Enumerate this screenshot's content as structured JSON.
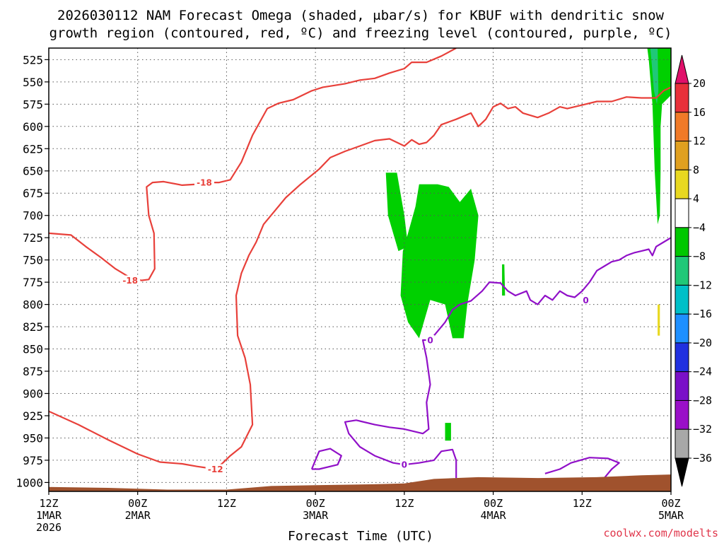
{
  "chart_data": {
    "type": "heatmap",
    "title_lines": [
      "2026030112 NAM Forecast Omega (shaded, μbar/s) for KBUF with dendritic snow",
      "growth region (contoured, red, ºC) and freezing level (contoured, purple, ºC)"
    ],
    "xlabel": "Forecast Time (UTC)",
    "credit": "coolwx.com/modelts",
    "x_range_hours": [
      0,
      84
    ],
    "y_range_hpa": [
      512,
      1010
    ],
    "y_ticks": [
      "525",
      "550",
      "575",
      "600",
      "625",
      "650",
      "675",
      "700",
      "725",
      "750",
      "775",
      "800",
      "825",
      "850",
      "875",
      "900",
      "925",
      "950",
      "975",
      "1000"
    ],
    "x_ticks": [
      {
        "h": 0,
        "lines": [
          "12Z",
          "1MAR",
          "2026"
        ]
      },
      {
        "h": 12,
        "lines": [
          "00Z",
          "2MAR"
        ]
      },
      {
        "h": 24,
        "lines": [
          "12Z"
        ]
      },
      {
        "h": 36,
        "lines": [
          "00Z",
          "3MAR"
        ]
      },
      {
        "h": 48,
        "lines": [
          "12Z"
        ]
      },
      {
        "h": 60,
        "lines": [
          "00Z",
          "4MAR"
        ]
      },
      {
        "h": 72,
        "lines": [
          "12Z"
        ]
      },
      {
        "h": 84,
        "lines": [
          "00Z",
          "5MAR"
        ]
      }
    ],
    "colorbar": {
      "labels": [
        "20",
        "16",
        "12",
        "8",
        "4",
        "−4",
        "−8",
        "−12",
        "−16",
        "−20",
        "−24",
        "−28",
        "−32",
        "−36"
      ],
      "colors": [
        "#e8303a",
        "#f07a28",
        "#e0a020",
        "#e8d820",
        "#ffffff",
        "#00c800",
        "#20c878",
        "#00c0c8",
        "#1e90ff",
        "#2030e0",
        "#7a10c8",
        "#9a10c8",
        "#a8a8a8"
      ],
      "top_arrow_color": "#e0106a",
      "bottom_arrow_color": "#000000"
    },
    "terrain_color": "#a0522d",
    "omega_regions": [
      {
        "value": -6,
        "color": "#00d000",
        "points": [
          [
            45.5,
            652
          ],
          [
            47,
            652
          ],
          [
            48,
            700
          ],
          [
            48.5,
            735
          ],
          [
            47.2,
            740
          ],
          [
            46.5,
            720
          ],
          [
            45.8,
            700
          ]
        ]
      },
      {
        "value": -6,
        "color": "#00d000",
        "points": [
          [
            50,
            665
          ],
          [
            52.5,
            665
          ],
          [
            54,
            668
          ],
          [
            55.5,
            685
          ],
          [
            57,
            670
          ],
          [
            58,
            700
          ],
          [
            57.5,
            750
          ],
          [
            56.5,
            800
          ],
          [
            56,
            838
          ],
          [
            54.5,
            838
          ],
          [
            53.5,
            800
          ],
          [
            51.5,
            795
          ],
          [
            50,
            838
          ],
          [
            48.5,
            820
          ],
          [
            47.5,
            790
          ],
          [
            47.8,
            740
          ],
          [
            48.5,
            720
          ],
          [
            49.5,
            690
          ]
        ]
      },
      {
        "value": -6,
        "color": "#00d000",
        "points": [
          [
            61.2,
            755
          ],
          [
            61.5,
            755
          ],
          [
            61.6,
            790
          ],
          [
            61.2,
            790
          ]
        ]
      },
      {
        "value": -6,
        "color": "#00d000",
        "points": [
          [
            53.5,
            933
          ],
          [
            54.3,
            933
          ],
          [
            54.3,
            953
          ],
          [
            53.5,
            953
          ]
        ]
      },
      {
        "value": -6,
        "color": "#00d000",
        "points": [
          [
            82.5,
            512
          ],
          [
            84,
            512
          ],
          [
            84,
            565
          ],
          [
            82.8,
            575
          ],
          [
            82.6,
            600
          ],
          [
            82.6,
            650
          ],
          [
            82.5,
            700
          ],
          [
            82.2,
            710
          ],
          [
            81.8,
            650
          ],
          [
            81.5,
            575
          ],
          [
            81,
            525
          ],
          [
            80.8,
            512
          ]
        ]
      },
      {
        "value": -10,
        "color": "#20c878",
        "points": [
          [
            81.2,
            512
          ],
          [
            82.2,
            512
          ],
          [
            82.3,
            560
          ],
          [
            82.1,
            575
          ],
          [
            81.7,
            560
          ],
          [
            81.4,
            530
          ]
        ]
      },
      {
        "value": 6,
        "color": "#e8d820",
        "points": [
          [
            82.2,
            800
          ],
          [
            82.5,
            800
          ],
          [
            82.5,
            835
          ],
          [
            82.2,
            835
          ]
        ]
      }
    ],
    "red_contours": [
      {
        "label": "-18",
        "label_at": [
          21,
          663
        ],
        "points": [
          [
            0,
            720
          ],
          [
            3,
            722
          ],
          [
            5,
            735
          ],
          [
            7,
            747
          ],
          [
            9,
            760
          ],
          [
            11,
            770
          ],
          [
            12.5,
            773
          ],
          [
            13.5,
            772
          ],
          [
            14.3,
            760
          ],
          [
            14.2,
            720
          ],
          [
            13.5,
            700
          ],
          [
            13.2,
            668
          ],
          [
            14,
            663
          ],
          [
            15.5,
            662
          ],
          [
            18,
            666
          ],
          [
            20,
            665
          ],
          [
            21,
            663
          ],
          [
            23,
            663
          ],
          [
            24.5,
            660
          ],
          [
            26,
            640
          ],
          [
            27.5,
            610
          ],
          [
            29.5,
            580
          ],
          [
            31,
            574
          ],
          [
            33,
            570
          ],
          [
            35.5,
            560
          ],
          [
            37,
            556
          ],
          [
            40,
            552
          ],
          [
            42,
            548
          ],
          [
            44,
            546
          ],
          [
            46,
            540
          ],
          [
            48,
            535
          ],
          [
            49,
            528
          ],
          [
            51,
            528
          ],
          [
            53,
            521
          ],
          [
            55,
            512
          ]
        ]
      },
      {
        "label": "-18",
        "label_at": [
          11,
          773
        ],
        "points": []
      },
      {
        "label": "-12",
        "label_at": [
          22.5,
          985
        ],
        "points": [
          [
            0,
            920
          ],
          [
            4,
            935
          ],
          [
            8,
            952
          ],
          [
            12,
            968
          ],
          [
            15,
            977
          ],
          [
            18,
            979
          ],
          [
            20,
            982
          ],
          [
            22.5,
            985
          ],
          [
            23.5,
            978
          ],
          [
            24.5,
            970
          ],
          [
            26,
            960
          ],
          [
            27.5,
            935
          ],
          [
            27.2,
            890
          ],
          [
            26.5,
            860
          ],
          [
            25.5,
            835
          ],
          [
            25.3,
            790
          ],
          [
            26,
            765
          ],
          [
            27,
            745
          ],
          [
            28,
            730
          ],
          [
            29,
            710
          ],
          [
            30.5,
            695
          ],
          [
            32,
            680
          ],
          [
            34,
            665
          ],
          [
            36.5,
            648
          ],
          [
            38,
            635
          ],
          [
            40,
            628
          ],
          [
            42,
            622
          ],
          [
            44,
            616
          ],
          [
            46,
            614
          ],
          [
            48,
            622
          ],
          [
            49,
            615
          ],
          [
            50,
            620
          ],
          [
            51,
            618
          ],
          [
            52,
            610
          ],
          [
            53,
            598
          ],
          [
            55,
            592
          ],
          [
            57,
            585
          ],
          [
            58,
            600
          ],
          [
            59,
            592
          ],
          [
            60,
            578
          ],
          [
            61,
            574
          ],
          [
            62,
            580
          ],
          [
            63,
            578
          ],
          [
            64,
            585
          ],
          [
            66,
            590
          ],
          [
            67.5,
            585
          ],
          [
            69,
            578
          ],
          [
            70,
            580
          ],
          [
            72,
            576
          ],
          [
            74,
            572
          ],
          [
            76,
            572
          ],
          [
            78,
            567
          ],
          [
            80,
            568
          ],
          [
            82,
            568
          ],
          [
            83,
            560
          ],
          [
            84,
            556
          ]
        ]
      }
    ],
    "purple_contours": [
      {
        "label": "0",
        "label_at": [
          51.5,
          840
        ],
        "points": [
          [
            51.5,
            840
          ],
          [
            52.5,
            830
          ],
          [
            53.5,
            820
          ],
          [
            54.5,
            806
          ],
          [
            55.5,
            800
          ],
          [
            57,
            796
          ],
          [
            58.5,
            785
          ],
          [
            59.5,
            775
          ],
          [
            61,
            776
          ],
          [
            62,
            785
          ],
          [
            63,
            790
          ],
          [
            64.5,
            785
          ],
          [
            65,
            795
          ],
          [
            66,
            800
          ],
          [
            67,
            790
          ],
          [
            68,
            795
          ],
          [
            69,
            785
          ],
          [
            70,
            790
          ],
          [
            71,
            792
          ],
          [
            72,
            785
          ],
          [
            73,
            775
          ],
          [
            74,
            762
          ],
          [
            75,
            757
          ],
          [
            76,
            752
          ],
          [
            77,
            750
          ],
          [
            78,
            745
          ],
          [
            79,
            742
          ],
          [
            80,
            740
          ],
          [
            81,
            738
          ],
          [
            81.5,
            745
          ],
          [
            82,
            735
          ],
          [
            83,
            730
          ],
          [
            84,
            725
          ]
        ]
      },
      {
        "label": "0",
        "label_at": [
          72.5,
          795
        ],
        "points": []
      },
      {
        "label": "0",
        "label_at": [
          48,
          980
        ],
        "points": [
          [
            51.5,
            840
          ],
          [
            50.5,
            840
          ],
          [
            51,
            860
          ],
          [
            51.5,
            890
          ],
          [
            51,
            910
          ],
          [
            51.3,
            940
          ],
          [
            50.5,
            945
          ],
          [
            48,
            940
          ],
          [
            46,
            938
          ],
          [
            44,
            935
          ],
          [
            41.5,
            930
          ],
          [
            40,
            932
          ],
          [
            40.5,
            945
          ],
          [
            42,
            960
          ],
          [
            44,
            970
          ],
          [
            46.5,
            978
          ],
          [
            48,
            980
          ],
          [
            50,
            978
          ],
          [
            52,
            975
          ],
          [
            53,
            965
          ],
          [
            54.5,
            963
          ],
          [
            55,
            975
          ],
          [
            55,
            995
          ]
        ]
      },
      {
        "label": "",
        "label_at": [
          0,
          0
        ],
        "points": [
          [
            35.5,
            985
          ],
          [
            36.5,
            965
          ],
          [
            38,
            962
          ],
          [
            39.5,
            970
          ],
          [
            39,
            980
          ],
          [
            36.5,
            985
          ],
          [
            35.5,
            985
          ]
        ]
      },
      {
        "label": "",
        "label_at": [
          0,
          0
        ],
        "points": [
          [
            67,
            990
          ],
          [
            69,
            985
          ],
          [
            70.5,
            978
          ],
          [
            73,
            972
          ],
          [
            75.5,
            973
          ],
          [
            77,
            978
          ],
          [
            76,
            985
          ],
          [
            75,
            995
          ]
        ]
      }
    ],
    "terrain_top_hpa": [
      [
        0,
        1005
      ],
      [
        8,
        1006
      ],
      [
        16,
        1008
      ],
      [
        24,
        1008
      ],
      [
        30,
        1004
      ],
      [
        36,
        1003
      ],
      [
        44,
        1002
      ],
      [
        48,
        1001
      ],
      [
        52,
        996
      ],
      [
        58,
        994
      ],
      [
        66,
        995
      ],
      [
        74,
        994
      ],
      [
        80,
        992
      ],
      [
        84,
        991
      ]
    ]
  }
}
